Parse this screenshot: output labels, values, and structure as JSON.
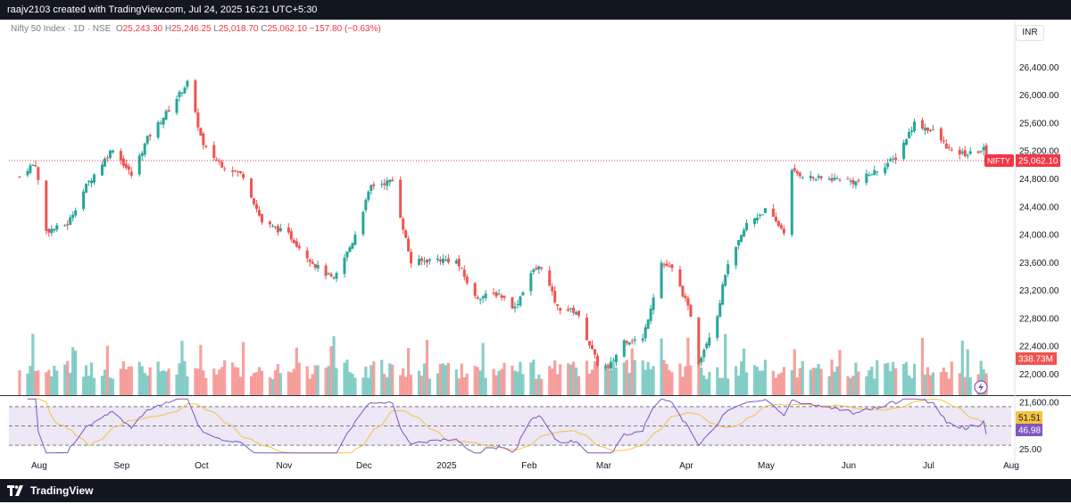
{
  "header": {
    "attribution": "raajv2103 created with TradingView.com, Jul 24, 2025 16:21 UTC+5:30"
  },
  "legend": {
    "symbol": "Nifty 50 Index · 1D · NSE",
    "o_label": "O",
    "o_value": "25,243.30",
    "h_label": "H",
    "h_value": "25,246.25",
    "l_label": "L",
    "l_value": "25,018.70",
    "c_label": "C",
    "c_value": "25,062.10",
    "change": "−157.80 (−0.63%)"
  },
  "currency": "INR",
  "footer": {
    "brand": "TradingView"
  },
  "colors": {
    "up": "#26a69a",
    "down": "#ef5350",
    "rsi": "#7e57c2",
    "rsi_ma": "#f5c242",
    "rsi_band": "#ede7f6",
    "last_price": "#f23645"
  },
  "chart_data": {
    "type": "candlestick",
    "price_ticks": [
      21600,
      22000,
      22400,
      22800,
      23200,
      23600,
      24000,
      24400,
      24800,
      25200,
      25600,
      26000,
      26400
    ],
    "price_tick_labels": [
      "21,600.00",
      "22,000.00",
      "22,400.00",
      "22,800.00",
      "23,200.00",
      "23,600.00",
      "24,000.00",
      "24,400.00",
      "24,800.00",
      "25,200.00",
      "25,600.00",
      "26,000.00",
      "26,400.00"
    ],
    "ylim": [
      21700,
      26800
    ],
    "x_labels": [
      "Aug",
      "Sep",
      "Oct",
      "Nov",
      "Dec",
      "2025",
      "Feb",
      "Mar",
      "Apr",
      "May",
      "Jun",
      "Jul",
      "Aug"
    ],
    "last_price_label": "NIFTY",
    "last_price": "25,062.10",
    "last_price_value": 25062.1,
    "volume_label": "338.73M",
    "anchors": [
      [
        "2024-07-26",
        24830
      ],
      [
        "2024-07-30",
        24980
      ],
      [
        "2024-08-01",
        25010
      ],
      [
        "2024-08-05",
        24050
      ],
      [
        "2024-08-13",
        24150
      ],
      [
        "2024-08-20",
        24700
      ],
      [
        "2024-08-30",
        25240
      ],
      [
        "2024-09-06",
        24850
      ],
      [
        "2024-09-12",
        25380
      ],
      [
        "2024-09-20",
        25790
      ],
      [
        "2024-09-27",
        26180
      ],
      [
        "2024-10-03",
        25260
      ],
      [
        "2024-10-10",
        25000
      ],
      [
        "2024-10-18",
        24850
      ],
      [
        "2024-10-25",
        24180
      ],
      [
        "2024-11-04",
        24000
      ],
      [
        "2024-11-14",
        23560
      ],
      [
        "2024-11-21",
        23350
      ],
      [
        "2024-11-28",
        23900
      ],
      [
        "2024-12-05",
        24700
      ],
      [
        "2024-12-13",
        24770
      ],
      [
        "2024-12-20",
        23600
      ],
      [
        "2024-12-30",
        23650
      ],
      [
        "2025-01-06",
        23620
      ],
      [
        "2025-01-13",
        23100
      ],
      [
        "2025-01-22",
        23150
      ],
      [
        "2025-01-28",
        22950
      ],
      [
        "2025-02-03",
        23450
      ],
      [
        "2025-02-07",
        23550
      ],
      [
        "2025-02-13",
        22950
      ],
      [
        "2025-02-20",
        22900
      ],
      [
        "2025-02-28",
        22150
      ],
      [
        "2025-03-04",
        22080
      ],
      [
        "2025-03-10",
        22480
      ],
      [
        "2025-03-17",
        22500
      ],
      [
        "2025-03-24",
        23600
      ],
      [
        "2025-03-28",
        23500
      ],
      [
        "2025-04-01",
        23150
      ],
      [
        "2025-04-04",
        22850
      ],
      [
        "2025-04-07",
        22180
      ],
      [
        "2025-04-14",
        22850
      ],
      [
        "2025-04-17",
        23450
      ],
      [
        "2025-04-25",
        24150
      ],
      [
        "2025-05-02",
        24350
      ],
      [
        "2025-05-09",
        24050
      ],
      [
        "2025-05-12",
        24900
      ],
      [
        "2025-05-21",
        24800
      ],
      [
        "2025-05-30",
        24800
      ],
      [
        "2025-06-05",
        24750
      ],
      [
        "2025-06-12",
        24900
      ],
      [
        "2025-06-20",
        25100
      ],
      [
        "2025-06-27",
        25600
      ],
      [
        "2025-07-04",
        25480
      ],
      [
        "2025-07-11",
        25180
      ],
      [
        "2025-07-17",
        25150
      ],
      [
        "2025-07-23",
        25220
      ],
      [
        "2025-07-24",
        25062
      ]
    ],
    "rsi": {
      "levels": [
        30,
        50,
        70
      ],
      "ylim": [
        20,
        80
      ],
      "ticks": [
        25
      ],
      "tick_labels": [
        "25.00"
      ],
      "rsi_value": "46.98",
      "ma_value": "51.51"
    }
  }
}
